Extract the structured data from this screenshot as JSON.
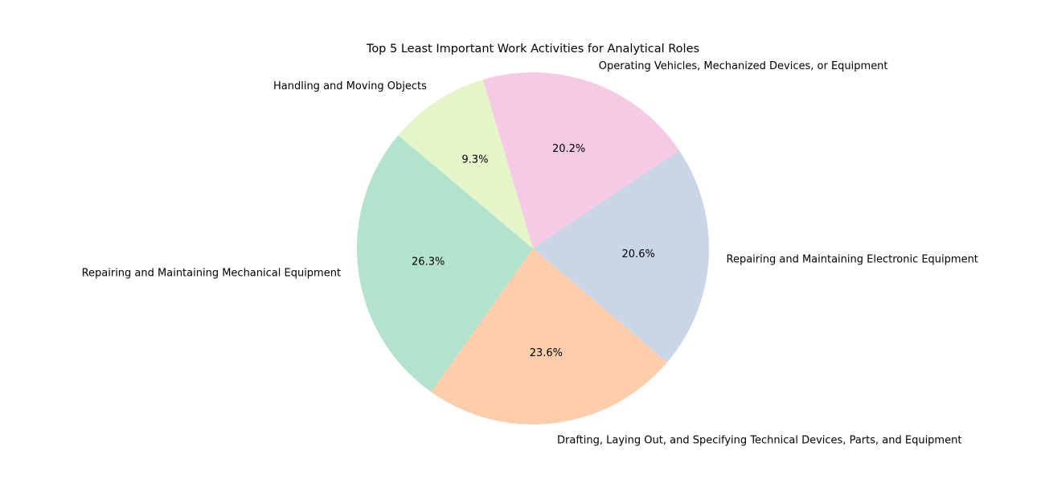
{
  "chart_data": {
    "type": "pie",
    "title": "Top 5 Least Important Work Activities for Analytical Roles",
    "start_angle_deg": 140,
    "direction": "counterclockwise",
    "slices": [
      {
        "label": "Repairing and Maintaining Mechanical Equipment",
        "value": 26.3,
        "pct_label": "26.3%",
        "color": "#b3e2cd"
      },
      {
        "label": "Drafting, Laying Out, and Specifying Technical Devices, Parts, and Equipment",
        "value": 23.6,
        "pct_label": "23.6%",
        "color": "#fdcdac"
      },
      {
        "label": "Repairing and Maintaining Electronic Equipment",
        "value": 20.6,
        "pct_label": "20.6%",
        "color": "#cbd5e8"
      },
      {
        "label": "Operating Vehicles, Mechanized Devices, or Equipment",
        "value": 20.2,
        "pct_label": "20.2%",
        "color": "#f4cae4"
      },
      {
        "label": "Handling and Moving Objects",
        "value": 9.3,
        "pct_label": "9.3%",
        "color": "#e6f5c9"
      }
    ]
  }
}
